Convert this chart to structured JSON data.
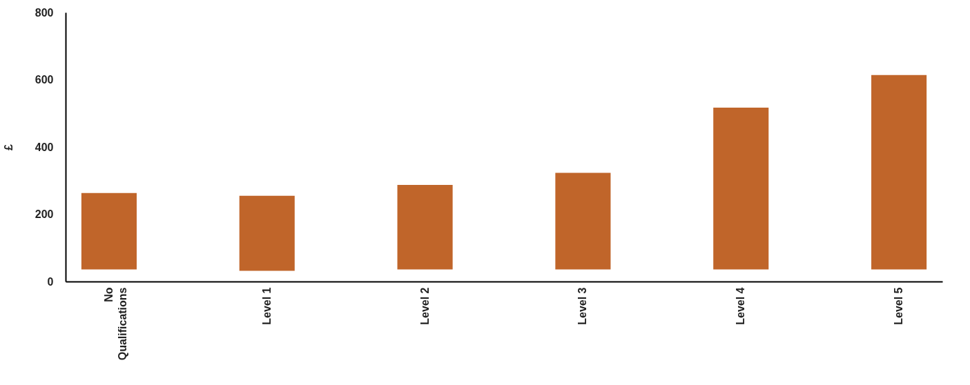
{
  "chart_data": {
    "type": "bar",
    "ylabel": "£",
    "categories": [
      "No Qualifications",
      "Level 1",
      "Level 2",
      "Level 3",
      "Level 4",
      "Level 5"
    ],
    "base": [
      36,
      32,
      36,
      36,
      36,
      36
    ],
    "values": [
      227,
      223,
      251,
      287,
      481,
      578
    ],
    "color": "#c0652a",
    "ylim": [
      0,
      800
    ],
    "yticks": [
      0,
      200,
      400,
      600,
      800
    ],
    "grid": false
  }
}
